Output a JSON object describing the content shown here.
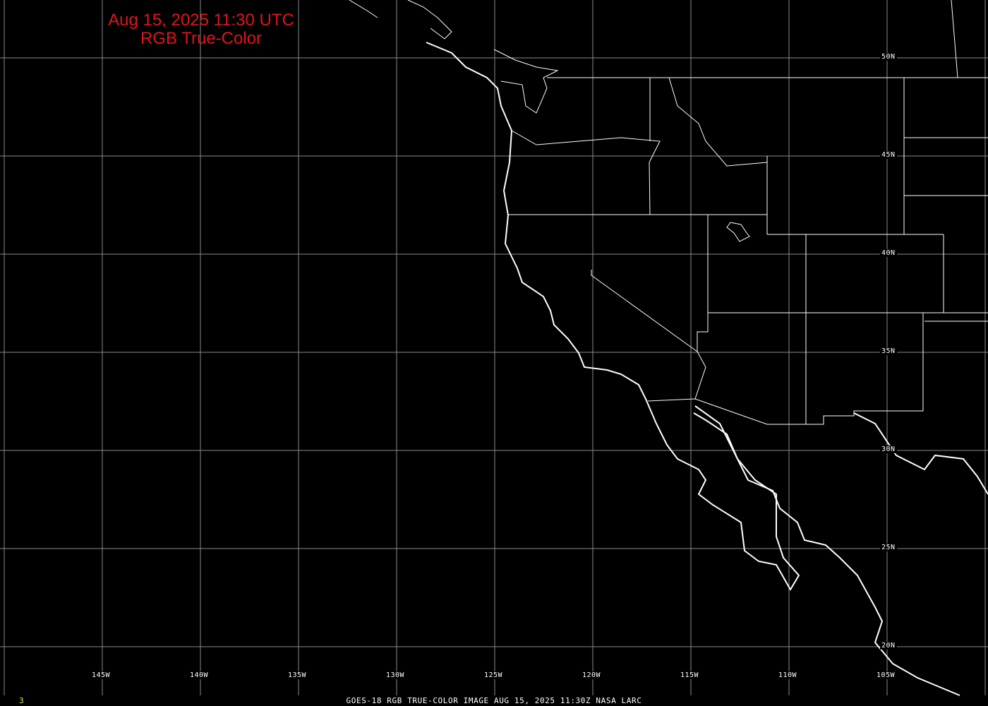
{
  "title": {
    "line1": "Aug 15, 2025 11:30 UTC",
    "line2": "RGB True-Color"
  },
  "caption": "GOES-18 RGB TRUE-COLOR IMAGE   AUG 15, 2025 11:30Z    NASA LARC",
  "frame_number": "3",
  "lon_labels": [
    "145W",
    "140W",
    "135W",
    "130W",
    "125W",
    "120W",
    "115W",
    "110W",
    "105W"
  ],
  "lat_labels": [
    "50N",
    "45N",
    "40N",
    "35N",
    "30N",
    "25N",
    "20N"
  ],
  "colors": {
    "title": "#e0141e",
    "grid": "#8a8a8a",
    "coast": "#ffffff",
    "frame_number": "#e8e050"
  }
}
